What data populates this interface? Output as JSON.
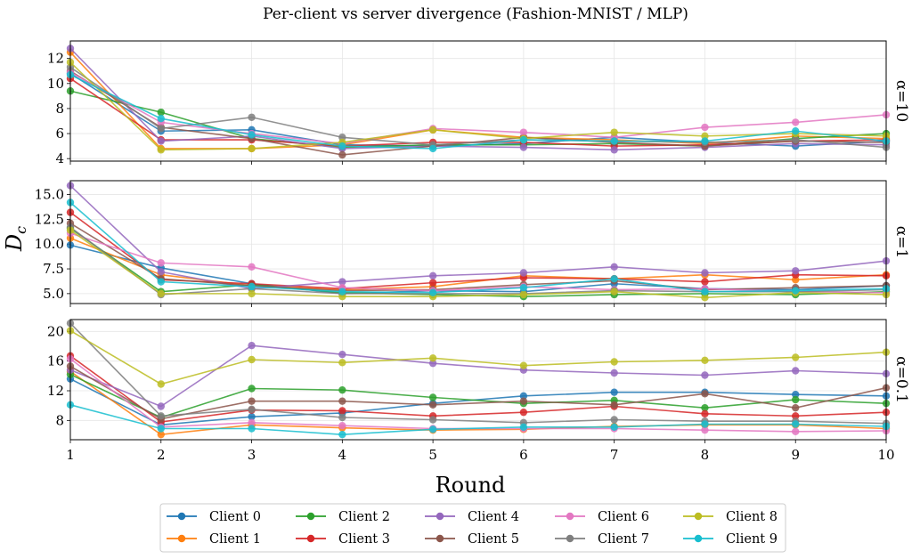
{
  "chart_data": {
    "type": "line",
    "title": "Per-client vs server divergence (Fashion-MNIST / MLP)",
    "xlabel": "Round",
    "ylabel": "D_c",
    "x": [
      1,
      2,
      3,
      4,
      5,
      6,
      7,
      8,
      9,
      10
    ],
    "xlim": [
      1,
      10
    ],
    "grid": true,
    "legend_position": "bottom-center",
    "legend_columns": 5,
    "colors": {
      "Client 0": "#1f77b4",
      "Client 1": "#ff7f0e",
      "Client 2": "#2ca02c",
      "Client 3": "#d62728",
      "Client 4": "#9467bd",
      "Client 5": "#8c564b",
      "Client 6": "#e377c2",
      "Client 7": "#7f7f7f",
      "Client 8": "#bcbd22",
      "Client 9": "#17becf"
    },
    "series_names": [
      "Client 0",
      "Client 1",
      "Client 2",
      "Client 3",
      "Client 4",
      "Client 5",
      "Client 6",
      "Client 7",
      "Client 8",
      "Client 9"
    ],
    "panels": [
      {
        "label": "α=10",
        "ylim": [
          3.8,
          13.4
        ],
        "yticks": [
          4,
          6,
          8,
          10,
          12
        ],
        "tick_labels": [
          "4",
          "6",
          "8",
          "10",
          "12"
        ],
        "series": [
          {
            "name": "Client 0",
            "values": [
              10.8,
              6.2,
              6.3,
              5.1,
              5.0,
              5.2,
              5.7,
              5.3,
              5.0,
              5.4
            ]
          },
          {
            "name": "Client 1",
            "values": [
              12.5,
              4.8,
              4.8,
              5.1,
              6.3,
              5.7,
              5.5,
              5.2,
              5.8,
              5.6
            ]
          },
          {
            "name": "Client 2",
            "values": [
              9.4,
              7.7,
              5.6,
              4.9,
              5.1,
              5.1,
              5.2,
              5.0,
              5.6,
              6.0
            ]
          },
          {
            "name": "Client 3",
            "values": [
              10.4,
              5.5,
              5.5,
              5.0,
              5.3,
              5.3,
              5.0,
              5.1,
              5.4,
              5.5
            ]
          },
          {
            "name": "Client 4",
            "values": [
              12.8,
              5.4,
              5.8,
              4.8,
              5.0,
              4.9,
              4.7,
              4.9,
              5.2,
              5.1
            ]
          },
          {
            "name": "Client 5",
            "values": [
              11.0,
              6.5,
              5.6,
              4.3,
              5.0,
              5.7,
              5.3,
              5.0,
              5.4,
              5.3
            ]
          },
          {
            "name": "Client 6",
            "values": [
              10.9,
              6.9,
              6.0,
              5.2,
              6.4,
              6.1,
              5.7,
              6.5,
              6.9,
              7.5
            ]
          },
          {
            "name": "Client 7",
            "values": [
              11.3,
              6.4,
              7.3,
              5.7,
              5.1,
              5.5,
              5.4,
              5.3,
              5.5,
              4.9
            ]
          },
          {
            "name": "Client 8",
            "values": [
              11.7,
              4.7,
              4.8,
              5.3,
              6.3,
              5.6,
              6.1,
              5.8,
              6.0,
              5.8
            ]
          },
          {
            "name": "Client 9",
            "values": [
              10.7,
              7.2,
              5.9,
              5.0,
              4.8,
              5.5,
              5.4,
              5.4,
              6.2,
              5.4
            ]
          }
        ]
      },
      {
        "label": "α=1",
        "ylim": [
          4.0,
          16.4
        ],
        "yticks": [
          5.0,
          7.5,
          10.0,
          12.5,
          15.0
        ],
        "tick_labels": [
          "5.0",
          "7.5",
          "10.0",
          "12.5",
          "15.0"
        ],
        "series": [
          {
            "name": "Client 0",
            "values": [
              9.9,
              7.6,
              6.0,
              5.0,
              5.3,
              5.2,
              6.0,
              5.5,
              5.4,
              5.8
            ]
          },
          {
            "name": "Client 1",
            "values": [
              10.6,
              6.9,
              5.8,
              5.4,
              5.7,
              6.8,
              6.5,
              6.9,
              6.4,
              6.9
            ]
          },
          {
            "name": "Client 2",
            "values": [
              11.6,
              5.2,
              5.9,
              5.1,
              4.9,
              4.7,
              4.9,
              5.0,
              4.9,
              5.2
            ]
          },
          {
            "name": "Client 3",
            "values": [
              13.2,
              6.4,
              6.0,
              5.5,
              6.1,
              6.6,
              6.5,
              6.2,
              6.9,
              6.8
            ]
          },
          {
            "name": "Client 4",
            "values": [
              15.9,
              7.2,
              5.5,
              6.2,
              6.8,
              7.1,
              7.7,
              7.1,
              7.3,
              8.3
            ]
          },
          {
            "name": "Client 5",
            "values": [
              12.1,
              6.5,
              5.8,
              5.3,
              5.4,
              5.9,
              6.3,
              5.4,
              5.6,
              5.8
            ]
          },
          {
            "name": "Client 6",
            "values": [
              11.1,
              8.1,
              7.7,
              5.6,
              5.3,
              5.7,
              5.4,
              5.5,
              5.2,
              5.1
            ]
          },
          {
            "name": "Client 7",
            "values": [
              11.7,
              4.9,
              5.5,
              5.0,
              5.0,
              5.0,
              5.3,
              5.2,
              5.2,
              5.4
            ]
          },
          {
            "name": "Client 8",
            "values": [
              11.4,
              5.0,
              5.0,
              4.7,
              4.7,
              4.9,
              5.2,
              4.6,
              5.1,
              4.9
            ]
          },
          {
            "name": "Client 9",
            "values": [
              14.2,
              6.2,
              5.7,
              5.2,
              5.1,
              5.6,
              6.5,
              5.2,
              5.3,
              5.5
            ]
          }
        ]
      },
      {
        "label": "α=0.1",
        "ylim": [
          5.4,
          21.6
        ],
        "yticks": [
          8,
          12,
          16,
          20
        ],
        "tick_labels": [
          "8",
          "12",
          "16",
          "20"
        ],
        "series": [
          {
            "name": "Client 0",
            "values": [
              13.6,
              7.4,
              8.5,
              9.0,
              10.3,
              11.3,
              11.8,
              11.8,
              11.5,
              11.3
            ]
          },
          {
            "name": "Client 1",
            "values": [
              14.6,
              6.1,
              7.4,
              7.0,
              6.7,
              6.8,
              7.2,
              7.4,
              7.4,
              6.9
            ]
          },
          {
            "name": "Client 2",
            "values": [
              14.2,
              8.4,
              12.3,
              12.1,
              11.1,
              10.3,
              10.7,
              9.7,
              10.8,
              10.3
            ]
          },
          {
            "name": "Client 3",
            "values": [
              16.7,
              7.8,
              9.4,
              9.3,
              8.6,
              9.1,
              9.9,
              8.9,
              8.6,
              9.1
            ]
          },
          {
            "name": "Client 4",
            "values": [
              14.8,
              9.9,
              18.1,
              16.9,
              15.7,
              14.8,
              14.4,
              14.1,
              14.7,
              14.3
            ]
          },
          {
            "name": "Client 5",
            "values": [
              15.3,
              8.2,
              10.6,
              10.6,
              10.1,
              10.6,
              10.1,
              11.6,
              9.7,
              12.4
            ]
          },
          {
            "name": "Client 6",
            "values": [
              16.3,
              7.1,
              7.7,
              7.3,
              6.9,
              6.9,
              6.9,
              6.7,
              6.5,
              6.6
            ]
          },
          {
            "name": "Client 7",
            "values": [
              21.1,
              8.6,
              9.5,
              8.4,
              8.1,
              7.7,
              8.1,
              7.9,
              7.9,
              7.6
            ]
          },
          {
            "name": "Client 8",
            "values": [
              20.1,
              12.9,
              16.2,
              15.8,
              16.4,
              15.4,
              15.9,
              16.1,
              16.5,
              17.2
            ]
          },
          {
            "name": "Client 9",
            "values": [
              10.1,
              6.9,
              6.9,
              6.1,
              6.8,
              7.1,
              7.1,
              7.5,
              7.5,
              7.2
            ]
          }
        ]
      }
    ]
  }
}
